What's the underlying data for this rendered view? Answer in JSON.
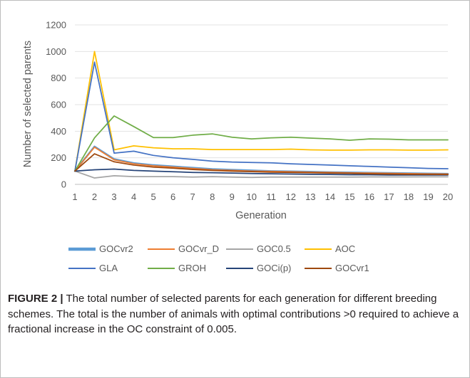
{
  "chart_data": {
    "type": "line",
    "xlabel": "Generation",
    "ylabel": "Number of selected parents",
    "x": [
      1,
      2,
      3,
      4,
      5,
      6,
      7,
      8,
      9,
      10,
      11,
      12,
      13,
      14,
      15,
      16,
      17,
      18,
      19,
      20
    ],
    "x_tick_labels": [
      "1",
      "2",
      "3",
      "4",
      "5",
      "6",
      "7",
      "8",
      "9",
      "10",
      "11",
      "12",
      "13",
      "14",
      "15",
      "16",
      "17",
      "18",
      "19",
      "20"
    ],
    "ylim": [
      0,
      1200
    ],
    "y_ticks": [
      0,
      200,
      400,
      600,
      800,
      1000,
      1200
    ],
    "y_tick_labels": [
      "0",
      "200",
      "400",
      "600",
      "800",
      "1000",
      "1200"
    ],
    "grid": "horizontal",
    "legend_position": "bottom",
    "series": [
      {
        "name": "GOCvr2",
        "color": "#5b9bd5",
        "values": [
          100,
          285,
          190,
          160,
          145,
          135,
          125,
          115,
          110,
          105,
          100,
          98,
          95,
          92,
          90,
          88,
          86,
          84,
          82,
          80
        ]
      },
      {
        "name": "GOCvr_D",
        "color": "#ed7d31",
        "values": [
          100,
          280,
          185,
          155,
          140,
          130,
          120,
          110,
          105,
          100,
          98,
          95,
          92,
          90,
          87,
          85,
          83,
          81,
          79,
          78
        ]
      },
      {
        "name": "GOC0.5",
        "color": "#a5a5a5",
        "values": [
          100,
          48,
          65,
          58,
          58,
          58,
          55,
          58,
          55,
          52,
          55,
          55,
          55,
          55,
          55,
          56,
          56,
          56,
          57,
          57
        ]
      },
      {
        "name": "AOC",
        "color": "#ffc000",
        "values": [
          100,
          1000,
          260,
          290,
          275,
          268,
          268,
          262,
          262,
          262,
          262,
          265,
          260,
          258,
          258,
          260,
          260,
          258,
          258,
          260
        ]
      },
      {
        "name": "GLA",
        "color": "#4472c4",
        "values": [
          100,
          920,
          235,
          250,
          218,
          200,
          188,
          175,
          168,
          165,
          162,
          155,
          150,
          145,
          140,
          135,
          130,
          125,
          120,
          118
        ]
      },
      {
        "name": "GROH",
        "color": "#70ad47",
        "values": [
          100,
          350,
          515,
          435,
          352,
          352,
          370,
          380,
          355,
          342,
          350,
          355,
          348,
          342,
          332,
          342,
          340,
          335,
          335,
          335
        ]
      },
      {
        "name": "GOCi(p)",
        "color": "#264478",
        "values": [
          100,
          110,
          115,
          105,
          100,
          95,
          90,
          88,
          85,
          82,
          80,
          78,
          76,
          74,
          72,
          72,
          70,
          70,
          70,
          70
        ]
      },
      {
        "name": "GOCvr1",
        "color": "#9e480e",
        "values": [
          100,
          230,
          170,
          145,
          130,
          122,
          112,
          105,
          100,
          96,
          92,
          90,
          88,
          85,
          83,
          80,
          78,
          76,
          75,
          74
        ]
      }
    ]
  },
  "caption": {
    "figure_label": "FIGURE 2 |",
    "text": " The total number of selected parents for each generation for different breeding schemes. The total is the number of animals with optimal contributions >0 required to achieve a fractional increase in the OC constraint of 0.005."
  }
}
